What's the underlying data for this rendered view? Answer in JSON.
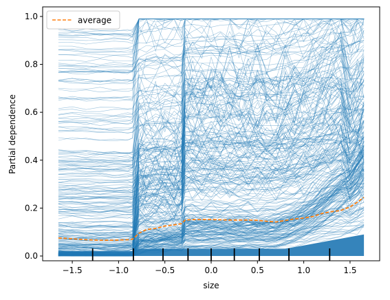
{
  "chart_data": {
    "type": "line",
    "title": "",
    "xlabel": "size",
    "ylabel": "Partial dependence",
    "xlim": [
      -1.82,
      1.82
    ],
    "ylim": [
      -0.02,
      1.04
    ],
    "x_ticks": [
      -1.5,
      -1.0,
      -0.5,
      0.0,
      0.5,
      1.0,
      1.5
    ],
    "x_tick_labels": [
      "−1.5",
      "−1.0",
      "−0.5",
      "0.0",
      "0.5",
      "1.0",
      "1.5"
    ],
    "y_ticks": [
      0.0,
      0.2,
      0.4,
      0.6,
      0.8,
      1.0
    ],
    "y_tick_labels": [
      "0.0",
      "0.2",
      "0.4",
      "0.6",
      "0.8",
      "1.0"
    ],
    "grid": false,
    "legend": {
      "position": "upper-left",
      "entries": [
        {
          "label": "average",
          "style": "dashed",
          "color": "#ff7f0e"
        }
      ]
    },
    "ice_color": "#1f77b4",
    "ice_line_count": 300,
    "x": [
      -1.65,
      -1.5,
      -1.35,
      -1.2,
      -1.05,
      -0.9,
      -0.85,
      -0.78,
      -0.7,
      -0.6,
      -0.5,
      -0.4,
      -0.32,
      -0.28,
      -0.2,
      -0.1,
      0.0,
      0.1,
      0.2,
      0.3,
      0.4,
      0.5,
      0.6,
      0.7,
      0.8,
      0.9,
      1.0,
      1.1,
      1.2,
      1.3,
      1.4,
      1.5,
      1.58,
      1.65
    ],
    "series": [
      {
        "name": "average",
        "values": [
          0.075,
          0.072,
          0.068,
          0.066,
          0.066,
          0.068,
          0.07,
          0.095,
          0.11,
          0.115,
          0.125,
          0.13,
          0.135,
          0.15,
          0.152,
          0.152,
          0.152,
          0.151,
          0.15,
          0.15,
          0.15,
          0.149,
          0.145,
          0.142,
          0.148,
          0.155,
          0.158,
          0.165,
          0.178,
          0.185,
          0.19,
          0.205,
          0.225,
          0.245
        ]
      }
    ],
    "rug_x": [
      -1.28,
      -0.84,
      -0.52,
      -0.25,
      0.0,
      0.25,
      0.52,
      0.84,
      1.28
    ]
  }
}
